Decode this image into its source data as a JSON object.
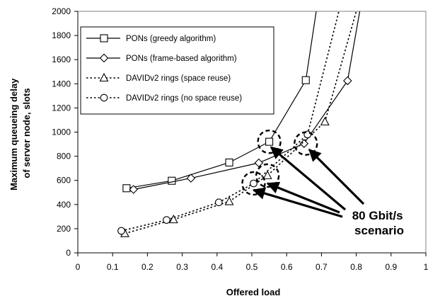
{
  "chart_data": {
    "type": "line",
    "xlabel": "Offered load",
    "ylabel_lines": [
      "Maximum queueing delay",
      "of server node,  slots"
    ],
    "xlim": [
      0,
      1
    ],
    "ylim": [
      0,
      2000
    ],
    "x_ticks": [
      0,
      0.1,
      0.2,
      0.3,
      0.4,
      0.5,
      0.6,
      0.7,
      0.8,
      0.9,
      1
    ],
    "x_tick_labels": [
      "0",
      "0.1",
      "0.2",
      "0.3",
      "0.4",
      "0.5",
      "0.6",
      "0.7",
      "0.8",
      "0.9",
      "1"
    ],
    "y_ticks": [
      0,
      200,
      400,
      600,
      800,
      1000,
      1200,
      1400,
      1600,
      1800,
      2000
    ],
    "y_tick_labels": [
      "0",
      "200",
      "400",
      "600",
      "800",
      "1000",
      "1200",
      "1400",
      "1600",
      "1800",
      "2000"
    ],
    "grid": false,
    "legend_position": "top-left",
    "series": [
      {
        "name": "PONs (greedy algorithm)",
        "line_style": "solid",
        "marker": "square",
        "points": [
          [
            0.14,
            535
          ],
          [
            0.27,
            597
          ],
          [
            0.435,
            748
          ],
          [
            0.55,
            920
          ],
          [
            0.655,
            1430
          ],
          [
            0.685,
            2000
          ]
        ],
        "marker_count": 5
      },
      {
        "name": "PONs (frame-based algorithm)",
        "line_style": "solid",
        "marker": "diamond",
        "points": [
          [
            0.16,
            525
          ],
          [
            0.325,
            618
          ],
          [
            0.52,
            745
          ],
          [
            0.65,
            905
          ],
          [
            0.775,
            1425
          ],
          [
            0.81,
            2000
          ]
        ],
        "marker_count": 5
      },
      {
        "name": "DAVIDv2 rings (space reuse)",
        "line_style": "dotted",
        "marker": "triangle",
        "points": [
          [
            0.135,
            160
          ],
          [
            0.275,
            275
          ],
          [
            0.435,
            425
          ],
          [
            0.545,
            640
          ],
          [
            0.71,
            1085
          ],
          [
            0.8,
            2000
          ]
        ],
        "marker_count": 5
      },
      {
        "name": "DAVIDv2 rings (no space reuse)",
        "line_style": "dotted",
        "marker": "circle",
        "points": [
          [
            0.125,
            182
          ],
          [
            0.255,
            272
          ],
          [
            0.405,
            418
          ],
          [
            0.505,
            575
          ],
          [
            0.66,
            980
          ],
          [
            0.75,
            2000
          ]
        ],
        "marker_count": 5
      }
    ],
    "annotation": {
      "lines": [
        "80 Gbit/s",
        "scenario"
      ],
      "highlighted_points": [
        [
          0.55,
          920
        ],
        [
          0.655,
          905
        ],
        [
          0.545,
          640
        ],
        [
          0.505,
          575
        ]
      ],
      "arrow_targets": [
        [
          0.555,
          875
        ],
        [
          0.665,
          855
        ],
        [
          0.545,
          575
        ],
        [
          0.505,
          520
        ]
      ]
    },
    "colors": {
      "ink": "#000000",
      "background": "#ffffff"
    }
  }
}
